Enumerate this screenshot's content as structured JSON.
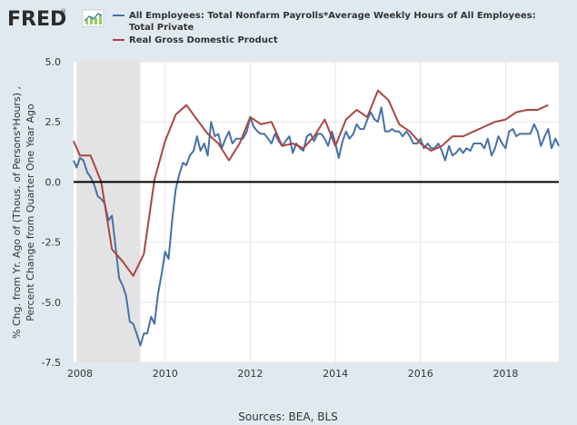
{
  "logo": {
    "text": "FRED",
    "trademark": "®"
  },
  "source_text": "Sources: BEA, BLS",
  "colors": {
    "background": "#e1e9f0",
    "plot_background": "#ffffff",
    "grid": "#e6e6e6",
    "recession": "#e3e3e3",
    "zero_line": "#000000",
    "series_blue": "#4572a7",
    "series_red": "#aa4643",
    "logo_bars": "#9ccc65"
  },
  "chart_data": {
    "type": "line",
    "ylabel_lines": [
      "% Chg. from Yr. Ago of (Thous. of Persons*Hours) ,",
      "Percent Change from Quarter One Year Ago"
    ],
    "xlim": [
      2007.85,
      2019.25
    ],
    "ylim": [
      -7.5,
      5.0
    ],
    "y_ticks": [
      5.0,
      2.5,
      0.0,
      -2.5,
      -5.0,
      -7.5
    ],
    "y_tick_labels": [
      "5.0",
      "2.5",
      "0.0",
      "-2.5",
      "-5.0",
      "-7.5"
    ],
    "x_ticks": [
      2008,
      2010,
      2012,
      2014,
      2016,
      2018
    ],
    "x_tick_labels": [
      "2008",
      "2010",
      "2012",
      "2014",
      "2016",
      "2018"
    ],
    "recession": [
      2007.92,
      2009.42
    ],
    "zero_line": 0,
    "grid": true,
    "legend_position": "top",
    "series": [
      {
        "name": "All Employees: Total Nonfarm Payrolls*Average Weekly Hours of All Employees: Total Private",
        "color": "#4572a7",
        "x": [
          2007.85,
          2007.92,
          2008.0,
          2008.08,
          2008.17,
          2008.25,
          2008.33,
          2008.42,
          2008.5,
          2008.58,
          2008.67,
          2008.75,
          2008.83,
          2008.92,
          2009.0,
          2009.08,
          2009.17,
          2009.25,
          2009.33,
          2009.42,
          2009.5,
          2009.58,
          2009.67,
          2009.75,
          2009.83,
          2009.92,
          2010.0,
          2010.08,
          2010.17,
          2010.25,
          2010.33,
          2010.42,
          2010.5,
          2010.58,
          2010.67,
          2010.75,
          2010.83,
          2010.92,
          2011.0,
          2011.08,
          2011.17,
          2011.25,
          2011.33,
          2011.42,
          2011.5,
          2011.58,
          2011.67,
          2011.75,
          2011.83,
          2011.92,
          2012.0,
          2012.08,
          2012.17,
          2012.25,
          2012.33,
          2012.42,
          2012.5,
          2012.58,
          2012.67,
          2012.75,
          2012.83,
          2012.92,
          2013.0,
          2013.08,
          2013.17,
          2013.25,
          2013.33,
          2013.42,
          2013.5,
          2013.58,
          2013.67,
          2013.75,
          2013.83,
          2013.92,
          2014.0,
          2014.08,
          2014.17,
          2014.25,
          2014.33,
          2014.42,
          2014.5,
          2014.58,
          2014.67,
          2014.75,
          2014.83,
          2014.92,
          2015.0,
          2015.08,
          2015.17,
          2015.25,
          2015.33,
          2015.42,
          2015.5,
          2015.58,
          2015.67,
          2015.75,
          2015.83,
          2015.92,
          2016.0,
          2016.08,
          2016.17,
          2016.25,
          2016.33,
          2016.42,
          2016.5,
          2016.58,
          2016.67,
          2016.75,
          2016.83,
          2016.92,
          2017.0,
          2017.08,
          2017.17,
          2017.25,
          2017.33,
          2017.42,
          2017.5,
          2017.58,
          2017.67,
          2017.75,
          2017.83,
          2017.92,
          2018.0,
          2018.08,
          2018.17,
          2018.25,
          2018.33,
          2018.42,
          2018.5,
          2018.58,
          2018.67,
          2018.75,
          2018.83,
          2018.92,
          2019.0,
          2019.08,
          2019.17,
          2019.25
        ],
        "y": [
          0.9,
          0.6,
          1.0,
          0.9,
          0.4,
          0.2,
          -0.1,
          -0.6,
          -0.7,
          -0.9,
          -1.6,
          -1.4,
          -2.6,
          -4.0,
          -4.3,
          -4.7,
          -5.8,
          -5.9,
          -6.3,
          -6.8,
          -6.3,
          -6.3,
          -5.6,
          -5.9,
          -4.7,
          -3.8,
          -2.9,
          -3.2,
          -1.5,
          -0.3,
          0.3,
          0.8,
          0.7,
          1.1,
          1.3,
          1.9,
          1.3,
          1.6,
          1.1,
          2.5,
          1.9,
          2.0,
          1.4,
          1.8,
          2.1,
          1.6,
          1.8,
          1.8,
          1.8,
          2.1,
          2.7,
          2.3,
          2.1,
          2.0,
          2.0,
          1.8,
          1.6,
          2.0,
          1.7,
          1.5,
          1.7,
          1.9,
          1.2,
          1.6,
          1.4,
          1.3,
          1.9,
          2.0,
          1.7,
          2.0,
          2.0,
          1.8,
          1.5,
          2.1,
          1.6,
          1.0,
          1.7,
          2.1,
          1.8,
          2.0,
          2.4,
          2.2,
          2.2,
          2.6,
          2.9,
          2.6,
          2.5,
          3.1,
          2.1,
          2.1,
          2.2,
          2.1,
          2.1,
          1.9,
          2.1,
          1.9,
          1.6,
          1.6,
          1.8,
          1.4,
          1.6,
          1.4,
          1.4,
          1.6,
          1.3,
          0.9,
          1.5,
          1.1,
          1.2,
          1.4,
          1.2,
          1.4,
          1.3,
          1.6,
          1.6,
          1.6,
          1.4,
          1.8,
          1.1,
          1.4,
          1.9,
          1.6,
          1.4,
          2.1,
          2.2,
          1.9,
          2.0,
          2.0,
          2.0,
          2.0,
          2.4,
          2.1,
          1.5,
          1.9,
          2.2,
          1.4,
          1.8,
          1.5
        ]
      },
      {
        "name": "Real Gross Domestic Product",
        "color": "#aa4643",
        "x": [
          2007.85,
          2008.0,
          2008.25,
          2008.5,
          2008.75,
          2009.0,
          2009.25,
          2009.5,
          2009.75,
          2010.0,
          2010.25,
          2010.5,
          2010.75,
          2011.0,
          2011.25,
          2011.5,
          2011.75,
          2012.0,
          2012.25,
          2012.5,
          2012.75,
          2013.0,
          2013.25,
          2013.5,
          2013.75,
          2014.0,
          2014.25,
          2014.5,
          2014.75,
          2015.0,
          2015.25,
          2015.5,
          2015.75,
          2016.0,
          2016.25,
          2016.5,
          2016.75,
          2017.0,
          2017.25,
          2017.5,
          2017.75,
          2018.0,
          2018.25,
          2018.5,
          2018.75,
          2019.0
        ],
        "y": [
          1.7,
          1.1,
          1.1,
          0.0,
          -2.8,
          -3.3,
          -3.9,
          -3.0,
          0.1,
          1.7,
          2.8,
          3.2,
          2.6,
          2.0,
          1.6,
          0.9,
          1.6,
          2.7,
          2.4,
          2.5,
          1.5,
          1.6,
          1.4,
          1.9,
          2.6,
          1.5,
          2.6,
          3.0,
          2.7,
          3.8,
          3.4,
          2.4,
          2.1,
          1.6,
          1.3,
          1.5,
          1.9,
          1.9,
          2.1,
          2.3,
          2.5,
          2.6,
          2.9,
          3.0,
          3.0,
          3.2
        ]
      }
    ]
  }
}
